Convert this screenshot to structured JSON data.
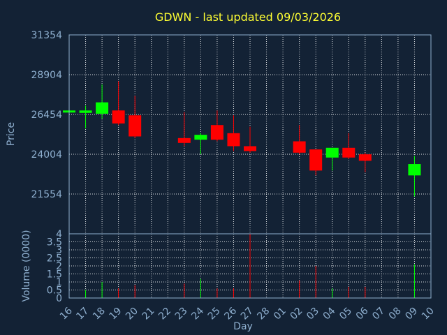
{
  "chart_data": {
    "type": "candlestick",
    "title": "GDWN - last updated 09/03/2026",
    "price_panel": {
      "ylabel": "Price",
      "ylim": [
        19104,
        31354
      ],
      "yticks": [
        "31354",
        "28904",
        "26454",
        "24004",
        "21554"
      ],
      "ytick_values": [
        31354,
        28904,
        26454,
        24004,
        21554
      ]
    },
    "volume_panel": {
      "ylabel": "Volume (0000)",
      "ylim": [
        0,
        4
      ],
      "yticks": [
        "4",
        "3.5",
        "3",
        "2.5",
        "2",
        "1.5",
        "1",
        "0.5",
        "0"
      ],
      "ytick_values": [
        4,
        3.5,
        3,
        2.5,
        2,
        1.5,
        1,
        0.5,
        0
      ]
    },
    "xlabel": "Day",
    "x_ticks": [
      "16",
      "17",
      "18",
      "19",
      "20",
      "21",
      "22",
      "23",
      "24",
      "25",
      "26",
      "27",
      "28",
      "01",
      "02",
      "03",
      "04",
      "05",
      "06",
      "07",
      "08",
      "09",
      "10"
    ],
    "grid": true,
    "up_color": "#00ff00",
    "down_color": "#ff0000",
    "candles": [
      {
        "day": "16",
        "open": 26600,
        "close": 26700,
        "high": 26700,
        "low": 26600,
        "volume": 0
      },
      {
        "day": "17",
        "open": 26550,
        "close": 26700,
        "high": 27000,
        "low": 25600,
        "volume": 0.5
      },
      {
        "day": "18",
        "open": 26500,
        "close": 27200,
        "high": 28300,
        "low": 26200,
        "volume": 1.0
      },
      {
        "day": "19",
        "open": 26700,
        "close": 25900,
        "high": 28500,
        "low": 25800,
        "volume": 0.6
      },
      {
        "day": "20",
        "open": 26400,
        "close": 25100,
        "high": 27600,
        "low": 25000,
        "volume": 0.8
      },
      {
        "day": "23",
        "open": 25000,
        "close": 24700,
        "high": 26600,
        "low": 24500,
        "volume": 0.9
      },
      {
        "day": "24",
        "open": 24900,
        "close": 25200,
        "high": 25300,
        "low": 24000,
        "volume": 1.2
      },
      {
        "day": "25",
        "open": 25800,
        "close": 24900,
        "high": 26700,
        "low": 24800,
        "volume": 0.6
      },
      {
        "day": "26",
        "open": 25300,
        "close": 24500,
        "high": 26400,
        "low": 24200,
        "volume": 0.6
      },
      {
        "day": "27",
        "open": 24500,
        "close": 24200,
        "high": 25700,
        "low": 24100,
        "volume": 4.0
      },
      {
        "day": "02",
        "open": 24800,
        "close": 24100,
        "high": 25800,
        "low": 24000,
        "volume": 1.1
      },
      {
        "day": "03",
        "open": 24300,
        "close": 23000,
        "high": 24300,
        "low": 22700,
        "volume": 2.0
      },
      {
        "day": "04",
        "open": 23800,
        "close": 24400,
        "high": 24400,
        "low": 23000,
        "volume": 0.6
      },
      {
        "day": "05",
        "open": 24400,
        "close": 23800,
        "high": 25300,
        "low": 23700,
        "volume": 0.7
      },
      {
        "day": "06",
        "open": 24000,
        "close": 23600,
        "high": 24100,
        "low": 22900,
        "volume": 0.7
      },
      {
        "day": "09",
        "open": 22700,
        "close": 23400,
        "high": 23900,
        "low": 21400,
        "volume": 2.1
      }
    ]
  }
}
